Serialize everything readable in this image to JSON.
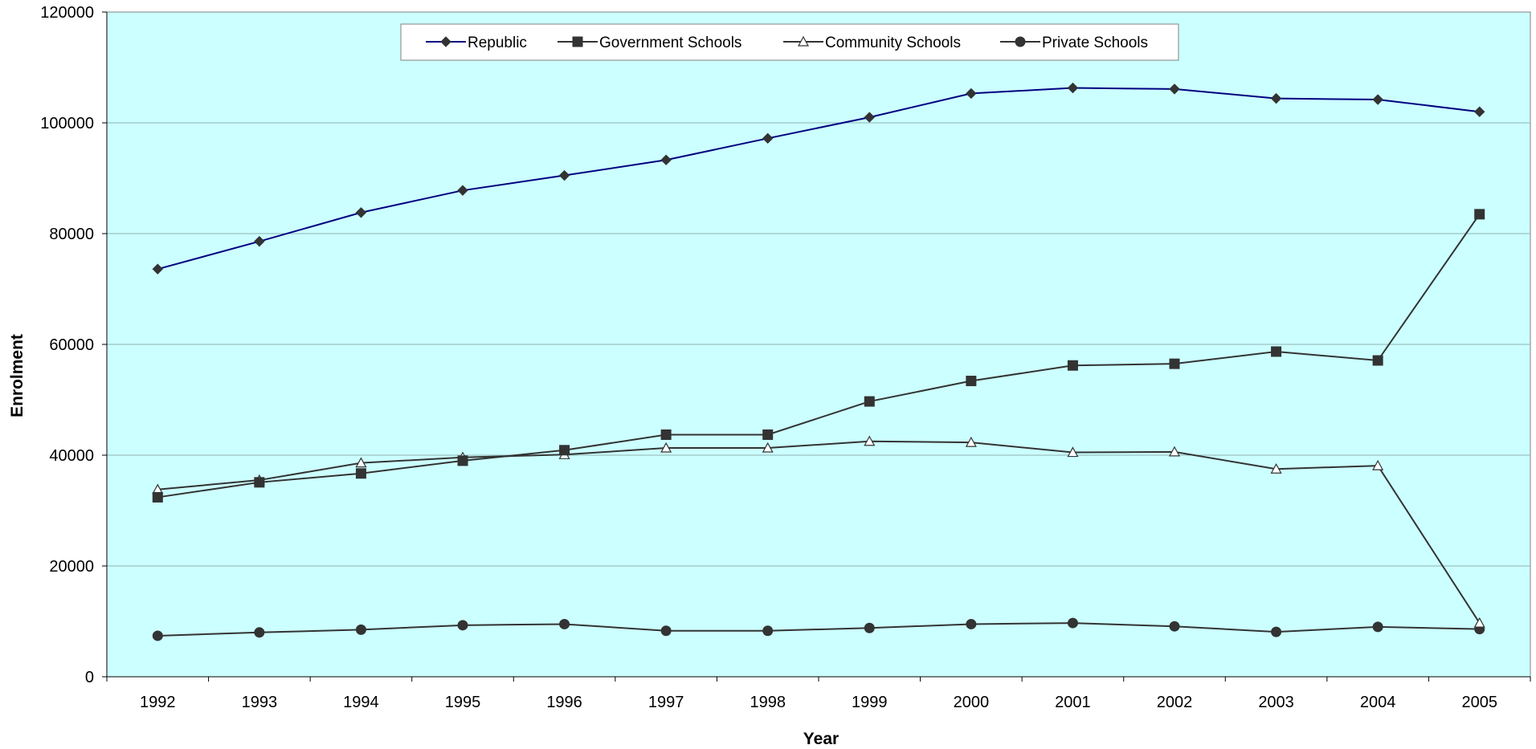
{
  "chart_data": {
    "type": "line",
    "title": "",
    "xlabel": "Year",
    "ylabel": "Enrolment",
    "categories": [
      "1992",
      "1993",
      "1994",
      "1995",
      "1996",
      "1997",
      "1998",
      "1999",
      "2000",
      "2001",
      "2002",
      "2003",
      "2004",
      "2005"
    ],
    "ylim": [
      0,
      120000
    ],
    "yticks": [
      "0",
      "20000",
      "40000",
      "60000",
      "80000",
      "100000",
      "120000"
    ],
    "grid": "horizontal",
    "legend_position": "top-center",
    "plot_background": "#ccffff",
    "series": [
      {
        "name": "Republic",
        "marker": "diamond",
        "color": "#000080",
        "values": [
          73600,
          78600,
          83800,
          87800,
          90500,
          93300,
          97200,
          101000,
          105300,
          106300,
          106100,
          104400,
          104200,
          102000
        ]
      },
      {
        "name": "Government Schools",
        "marker": "square",
        "color": "#333333",
        "values": [
          32400,
          35100,
          36700,
          39000,
          40900,
          43700,
          43700,
          49700,
          53400,
          56200,
          56500,
          58700,
          57100,
          83500
        ]
      },
      {
        "name": "Community Schools",
        "marker": "triangle",
        "color": "#333333",
        "values": [
          33800,
          35500,
          38600,
          39600,
          40100,
          41300,
          41300,
          42500,
          42300,
          40500,
          40600,
          37500,
          38100,
          9700
        ]
      },
      {
        "name": "Private Schools",
        "marker": "circle",
        "color": "#333333",
        "values": [
          7400,
          8000,
          8500,
          9300,
          9500,
          8300,
          8300,
          8800,
          9500,
          9700,
          9100,
          8100,
          9000,
          8600
        ]
      }
    ]
  }
}
